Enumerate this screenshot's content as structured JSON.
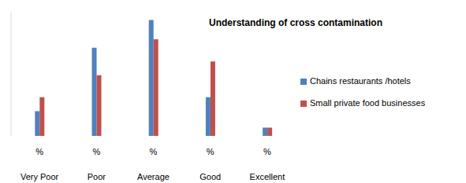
{
  "chart_data": {
    "type": "bar",
    "title": "Understanding of cross contamination",
    "categories": [
      "%\nVery Poor",
      "%\nPoor",
      "%\nAverage",
      "%\nGood",
      "%\nExcellent"
    ],
    "series": [
      {
        "name": "Chains restaurants /hotels",
        "color": "#4f81bd",
        "values": [
          9,
          32,
          42,
          14,
          3
        ]
      },
      {
        "name": "Small private food businesses",
        "color": "#c0504d",
        "values": [
          14,
          22,
          35,
          27,
          3
        ]
      }
    ],
    "ylim": [
      0,
      45
    ],
    "tick_labels": "x",
    "legend": "right"
  }
}
